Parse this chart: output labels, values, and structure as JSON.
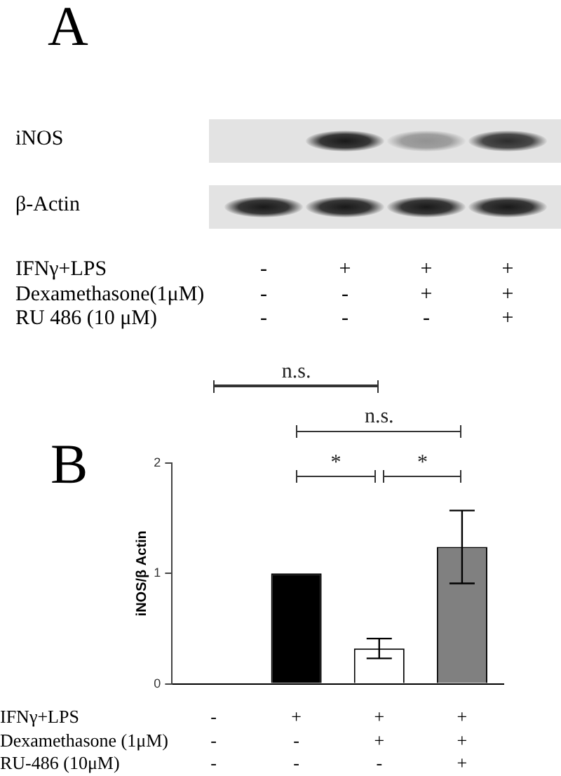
{
  "chart_data": [
    {
      "type": "other",
      "title": "A",
      "categories": [
        "-\n-\n-",
        "+\n-\n-",
        "+\n+\n-",
        "+\n+\n+"
      ],
      "annotations": [
        "iNOS",
        "β-Actin",
        "IFNγ+LPS",
        "Dexamethasone(1μM)",
        "RU 486 (10 μM)"
      ]
    },
    {
      "type": "bar",
      "title": "B",
      "ylabel": "iNOS/β Actin",
      "categories": [
        "-\n-\n-",
        "+\n-\n-",
        "+\n+\n-",
        "+\n+\n+"
      ],
      "values": [
        null,
        1,
        0.32,
        1.24
      ],
      "errors": [
        null,
        null,
        0.09,
        0.33
      ],
      "colors": [
        "#000000",
        "#000000",
        "#ffffff",
        "#808080"
      ],
      "ylim": [
        0,
        2
      ],
      "yticks": [
        0,
        1,
        2
      ],
      "grid": false,
      "legend": false,
      "annotations": [
        "n.s.",
        "n.s.",
        "*",
        "*",
        "IFNγ+LPS",
        "Dexamethasone (1μM)",
        "RU-486 (10μM)"
      ]
    }
  ]
}
